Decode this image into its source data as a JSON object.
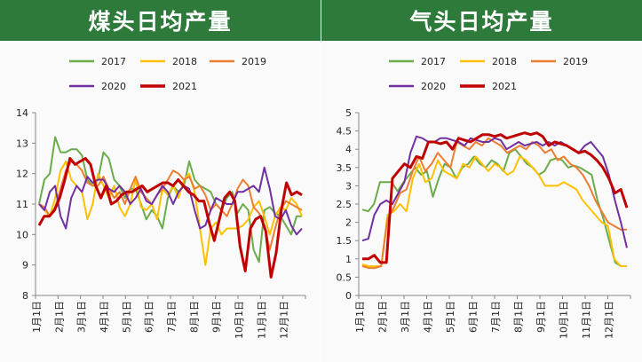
{
  "colors": {
    "header_bg": "#2e7a3a",
    "s2017": "#6aab4a",
    "s2018": "#ffc000",
    "s2019": "#ed7d31",
    "s2020": "#7030a0",
    "s2021": "#c00000"
  },
  "months": [
    "1月1日",
    "2月1日",
    "3月1日",
    "4月1日",
    "5月1日",
    "6月1日",
    "7月1日",
    "8月1日",
    "9月1日",
    "10月1日",
    "11月1日",
    "12月1日"
  ],
  "charts": [
    {
      "id": "coke-daily",
      "type": "line",
      "title": "煤头日均产量",
      "ylim": [
        8,
        14
      ],
      "yticks": [
        8,
        9,
        10,
        11,
        12,
        13,
        14
      ],
      "series": [
        {
          "name": "2017",
          "values": [
            11.0,
            11.8,
            12.0,
            13.2,
            12.7,
            12.7,
            12.8,
            12.8,
            12.6,
            11.8,
            11.6,
            11.8,
            12.7,
            12.5,
            11.8,
            11.6,
            11.2,
            11.5,
            11.5,
            11.0,
            10.5,
            10.8,
            10.6,
            10.2,
            11.2,
            11.6,
            11.4,
            11.6,
            12.4,
            11.8,
            11.6,
            11.5,
            11.4,
            11.0,
            10.8,
            11.2,
            11.4,
            10.7,
            11.0,
            10.8,
            9.5,
            9.1,
            10.8,
            10.9,
            10.7,
            10.6,
            10.3,
            10.0,
            10.6,
            10.6
          ]
        },
        {
          "name": "2018",
          "values": [
            11.0,
            10.8,
            10.6,
            11.2,
            12.1,
            12.4,
            11.8,
            11.6,
            11.4,
            10.5,
            11.0,
            12.0,
            11.6,
            11.2,
            11.6,
            10.9,
            10.6,
            11.0,
            11.8,
            10.9,
            10.8,
            11.0,
            10.5,
            11.5,
            11.3,
            11.6,
            11.2,
            11.8,
            12.0,
            11.4,
            10.2,
            9.0,
            10.2,
            10.4,
            10.0,
            10.2,
            10.2,
            10.2,
            10.3,
            10.5,
            10.9,
            11.1,
            10.6,
            10.0,
            10.6,
            10.9,
            10.8,
            11.2,
            11.0,
            10.6
          ]
        },
        {
          "name": "2019",
          "values": [
            11.0,
            10.9,
            10.6,
            10.9,
            11.5,
            12.1,
            12.4,
            12.3,
            12.1,
            11.7,
            11.6,
            11.6,
            11.9,
            11.5,
            11.2,
            11.4,
            11.0,
            11.5,
            11.9,
            11.4,
            11.2,
            11.0,
            11.3,
            11.5,
            11.8,
            12.1,
            12.0,
            11.8,
            11.9,
            11.5,
            11.6,
            11.3,
            10.8,
            11.0,
            10.8,
            10.6,
            11.0,
            11.5,
            11.8,
            11.6,
            10.9,
            10.7,
            10.3,
            9.5,
            10.2,
            10.8,
            11.1,
            11.0,
            10.9,
            10.8
          ]
        },
        {
          "name": "2020",
          "values": [
            11.0,
            10.8,
            11.4,
            11.6,
            10.6,
            10.2,
            11.2,
            11.6,
            11.4,
            11.9,
            11.7,
            11.8,
            11.8,
            11.5,
            11.4,
            11.6,
            11.4,
            11.0,
            11.2,
            11.5,
            11.1,
            11.0,
            11.3,
            11.6,
            11.4,
            11.0,
            11.4,
            11.6,
            11.5,
            10.8,
            10.2,
            10.3,
            10.8,
            11.2,
            11.1,
            11.0,
            11.0,
            11.4,
            11.4,
            11.5,
            11.6,
            11.4,
            12.2,
            11.5,
            10.6,
            10.5,
            10.8,
            10.3,
            10.0,
            10.2
          ]
        },
        {
          "name": "2021",
          "values": [
            10.3,
            10.6,
            10.6,
            10.8,
            11.2,
            11.8,
            12.5,
            12.3,
            12.4,
            12.5,
            12.3,
            11.6,
            11.2,
            11.6,
            11.0,
            11.1,
            11.3,
            11.4,
            11.4,
            11.5,
            11.6,
            11.4,
            11.5,
            11.6,
            11.7,
            11.7,
            11.6,
            11.8,
            11.6,
            11.4,
            11.3,
            11.1,
            11.1,
            10.4,
            9.8,
            10.5,
            11.2,
            11.4,
            11.1,
            9.6,
            8.8,
            10.2,
            10.5,
            10.6,
            10.1,
            8.6,
            9.4,
            10.8,
            11.7,
            11.3,
            11.4,
            11.3
          ]
        }
      ]
    },
    {
      "id": "gas-daily",
      "type": "line",
      "title": "气头日均产量",
      "ylim": [
        0,
        5
      ],
      "yticks": [
        0,
        0.5,
        1,
        1.5,
        2,
        2.5,
        3,
        3.5,
        4,
        4.5,
        5
      ],
      "series": [
        {
          "name": "2017",
          "values": [
            2.35,
            2.3,
            2.5,
            3.1,
            3.1,
            3.1,
            2.85,
            3.1,
            3.3,
            3.5,
            3.3,
            3.4,
            2.7,
            3.2,
            3.6,
            3.5,
            3.2,
            3.5,
            3.6,
            3.8,
            3.6,
            3.5,
            3.7,
            3.6,
            3.4,
            3.9,
            4.0,
            3.8,
            3.6,
            3.5,
            3.3,
            3.4,
            3.7,
            3.75,
            3.7,
            3.5,
            3.55,
            3.5,
            3.4,
            3.3,
            2.6,
            2.1,
            1.5,
            0.9,
            0.8,
            0.8
          ]
        },
        {
          "name": "2018",
          "values": [
            0.85,
            0.8,
            0.8,
            0.8,
            2.2,
            2.3,
            2.5,
            2.3,
            3.2,
            3.6,
            3.1,
            3.2,
            3.7,
            3.4,
            3.3,
            3.2,
            3.6,
            3.5,
            3.8,
            3.6,
            3.4,
            3.6,
            3.5,
            3.3,
            3.4,
            3.8,
            3.7,
            3.5,
            3.3,
            3.0,
            3.0,
            3.0,
            3.1,
            3.0,
            2.9,
            2.6,
            2.4,
            2.2,
            2.0,
            1.9,
            1.0,
            0.8,
            0.8
          ]
        },
        {
          "name": "2019",
          "values": [
            0.8,
            0.75,
            0.75,
            0.8,
            2.1,
            2.4,
            2.8,
            2.9,
            3.4,
            3.8,
            3.4,
            3.6,
            3.9,
            3.7,
            3.5,
            4.2,
            4.1,
            4.0,
            4.2,
            4.1,
            4.3,
            4.2,
            4.1,
            3.9,
            4.0,
            4.1,
            4.0,
            4.2,
            4.1,
            3.9,
            4.0,
            3.7,
            3.8,
            3.6,
            3.5,
            3.3,
            3.0,
            2.6,
            2.3,
            2.0,
            1.9,
            1.8,
            1.8
          ]
        },
        {
          "name": "2020",
          "values": [
            1.5,
            1.55,
            2.2,
            2.5,
            2.6,
            2.5,
            2.8,
            3.1,
            3.9,
            4.35,
            4.3,
            4.2,
            4.2,
            4.3,
            4.3,
            4.25,
            4.2,
            4.1,
            4.3,
            4.25,
            4.2,
            4.2,
            4.3,
            4.25,
            4.0,
            4.1,
            4.2,
            4.1,
            4.15,
            4.2,
            4.1,
            4.2,
            4.1,
            4.2,
            4.1,
            4.0,
            3.9,
            4.1,
            4.2,
            4.0,
            3.8,
            3.3,
            2.6,
            2.0,
            1.3
          ]
        },
        {
          "name": "2021",
          "values": [
            1.0,
            1.0,
            1.1,
            0.9,
            0.9,
            3.2,
            3.4,
            3.6,
            3.5,
            3.8,
            3.75,
            4.2,
            4.2,
            4.15,
            4.2,
            4.0,
            4.3,
            4.25,
            4.2,
            4.3,
            4.4,
            4.4,
            4.35,
            4.4,
            4.3,
            4.35,
            4.4,
            4.45,
            4.4,
            4.45,
            4.35,
            4.1,
            4.2,
            4.15,
            4.1,
            4.0,
            3.9,
            3.95,
            3.85,
            3.7,
            3.5,
            3.2,
            2.8,
            2.9,
            2.4
          ]
        }
      ]
    }
  ]
}
